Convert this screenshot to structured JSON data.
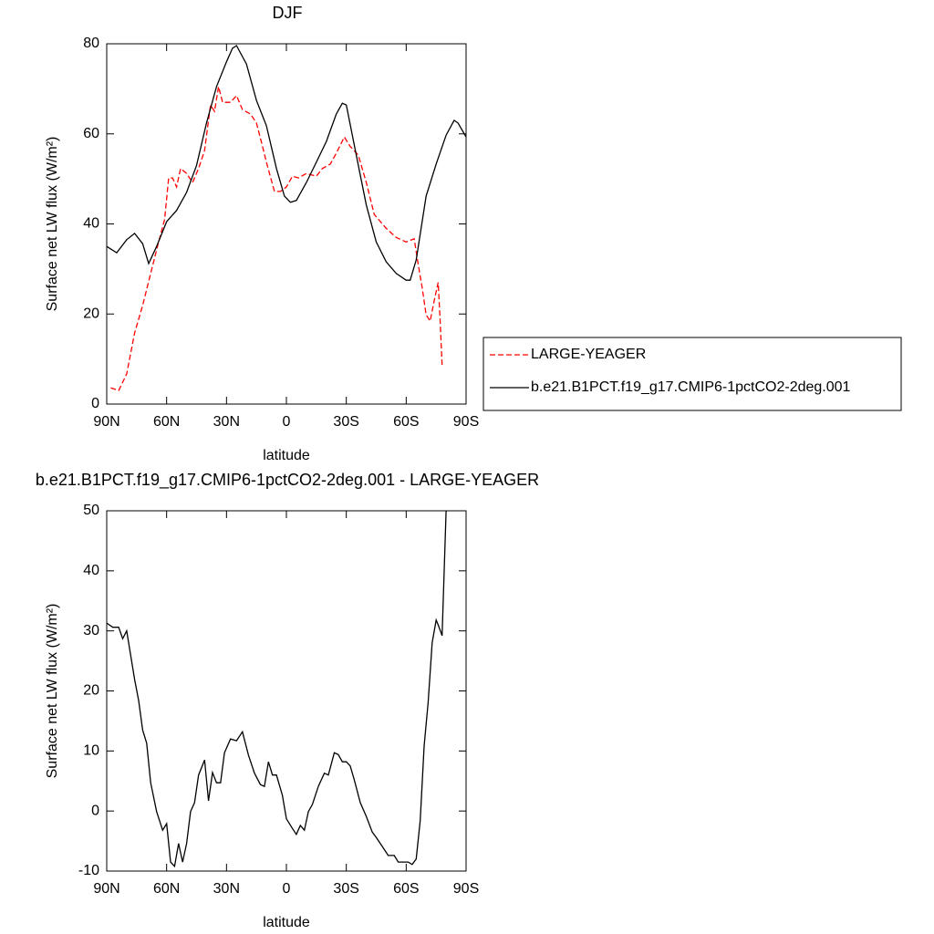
{
  "chart_data": [
    {
      "type": "line",
      "title": "DJF",
      "xlabel": "latitude",
      "ylabel": "Surface net LW flux (W/m²)",
      "xlim": [
        90,
        -90
      ],
      "ylim": [
        0,
        80
      ],
      "xticks": [
        {
          "value": 90,
          "label": "90N"
        },
        {
          "value": 60,
          "label": "60N"
        },
        {
          "value": 30,
          "label": "30N"
        },
        0,
        {
          "value": -30,
          "label": "30S"
        },
        {
          "value": -60,
          "label": "60S"
        },
        {
          "value": -90,
          "label": "90S"
        }
      ],
      "yticks": [
        0,
        20,
        40,
        60,
        80
      ],
      "legend": "right",
      "series": [
        {
          "name": "LARGE-YEAGER",
          "color": "#ff0000",
          "dash": true,
          "x": [
            88,
            84,
            80,
            76,
            72,
            68,
            64,
            61,
            59,
            57,
            55,
            53,
            50,
            47,
            44,
            41,
            38,
            36,
            34,
            32,
            28,
            25,
            22,
            18,
            15,
            12,
            10,
            6,
            3,
            0,
            -3,
            -6,
            -10,
            -15,
            -18,
            -22,
            -25,
            -29,
            -32,
            -36,
            -40,
            -44,
            -50,
            -55,
            -60,
            -64,
            -66,
            -68,
            -70,
            -72,
            -74,
            -76,
            -77,
            -78
          ],
          "values": [
            3.6,
            3,
            6.7,
            15.8,
            21.9,
            29,
            36,
            41,
            50.2,
            50.2,
            48.2,
            52.3,
            51.2,
            49.2,
            52.3,
            56.3,
            66.4,
            65,
            70.5,
            67,
            67,
            68.5,
            65.4,
            64.4,
            62.4,
            57.3,
            53.7,
            47.2,
            47.2,
            48.2,
            50.6,
            50.2,
            51.2,
            50.6,
            52.3,
            53.3,
            55.7,
            59.3,
            57.2,
            55.3,
            49.2,
            42.1,
            39,
            37,
            36,
            36.7,
            31,
            25.9,
            19.8,
            18.4,
            22.9,
            27,
            18.8,
            8.7
          ]
        },
        {
          "name": "b.e21.B1PCT.f19_g17.CMIP6-1pctCO2-2deg.001",
          "color": "#000000",
          "dash": false,
          "x": [
            90,
            85,
            80,
            76,
            72,
            69,
            65,
            60,
            55,
            50,
            45,
            40,
            35,
            30,
            27,
            25,
            20,
            15,
            10,
            5,
            1,
            -2,
            -5,
            -10,
            -15,
            -20,
            -25,
            -28,
            -30,
            -35,
            -40,
            -45,
            -50,
            -55,
            -60,
            -62,
            -65,
            -70,
            -75,
            -80,
            -84,
            -86,
            -90
          ],
          "values": [
            35,
            33.6,
            36.5,
            37.9,
            35.6,
            31.2,
            35,
            40.5,
            43,
            47,
            53,
            62.4,
            70.5,
            76,
            79,
            79.6,
            75.5,
            67.4,
            61.8,
            52.3,
            46.2,
            44.8,
            45.2,
            49.2,
            53.7,
            58.3,
            64.4,
            66.8,
            66.4,
            55.3,
            44.2,
            36,
            31.6,
            29,
            27.5,
            27.5,
            32,
            46.2,
            53.3,
            59.7,
            63,
            62.4,
            59.3
          ]
        }
      ]
    },
    {
      "type": "line",
      "title": "b.e21.B1PCT.f19_g17.CMIP6-1pctCO2-2deg.001 - LARGE-YEAGER",
      "xlabel": "latitude",
      "ylabel": "Surface net LW flux (W/m²)",
      "xlim": [
        90,
        -90
      ],
      "ylim": [
        -10,
        50
      ],
      "xticks": [
        {
          "value": 90,
          "label": "90N"
        },
        {
          "value": 60,
          "label": "60N"
        },
        {
          "value": 30,
          "label": "30N"
        },
        0,
        {
          "value": -30,
          "label": "30S"
        },
        {
          "value": -60,
          "label": "60S"
        },
        {
          "value": -90,
          "label": "90S"
        }
      ],
      "yticks": [
        -10,
        0,
        10,
        20,
        30,
        40,
        50
      ],
      "color": "#000000",
      "x": [
        90,
        87,
        84,
        82,
        80,
        76,
        74,
        72,
        70,
        68,
        65,
        62,
        60,
        58,
        56,
        54,
        52,
        50,
        48,
        46,
        44,
        41,
        39,
        37,
        35,
        33,
        31,
        28,
        25,
        22,
        19,
        16,
        13,
        11,
        9,
        7,
        5,
        2,
        0,
        -3,
        -5,
        -7,
        -9,
        -11,
        -13,
        -16,
        -19,
        -21,
        -24,
        -26,
        -28,
        -30,
        -32,
        -34,
        -37,
        -40,
        -43,
        -45,
        -48,
        -51,
        -54,
        -56,
        -59,
        -61,
        -63,
        -65,
        -67,
        -69,
        -71,
        -73,
        -75,
        -76,
        -78,
        -80
      ],
      "values": [
        31.3,
        30.6,
        30.6,
        28.7,
        30,
        21.9,
        18.4,
        13.5,
        11.3,
        4.7,
        -0.1,
        -3.2,
        -2.1,
        -8.5,
        -9.2,
        -5.4,
        -8.5,
        -5.4,
        -0.1,
        1.4,
        6,
        8.5,
        1.7,
        6.4,
        4.7,
        4.7,
        9.7,
        12,
        11.7,
        13.2,
        9.3,
        6.3,
        4.4,
        4.1,
        8.2,
        6,
        6,
        2.6,
        -1.3,
        -2.9,
        -3.9,
        -2.4,
        -3.2,
        -0.1,
        1.1,
        4.1,
        6.3,
        6,
        9.7,
        9.4,
        8.2,
        8.2,
        7.5,
        5.2,
        1.4,
        -0.9,
        -3.5,
        -4.4,
        -5.9,
        -7.4,
        -7.4,
        -8.5,
        -8.5,
        -8.5,
        -8.9,
        -8,
        -1.6,
        10.8,
        18.1,
        28,
        31.8,
        31,
        29.2,
        50
      ]
    }
  ]
}
